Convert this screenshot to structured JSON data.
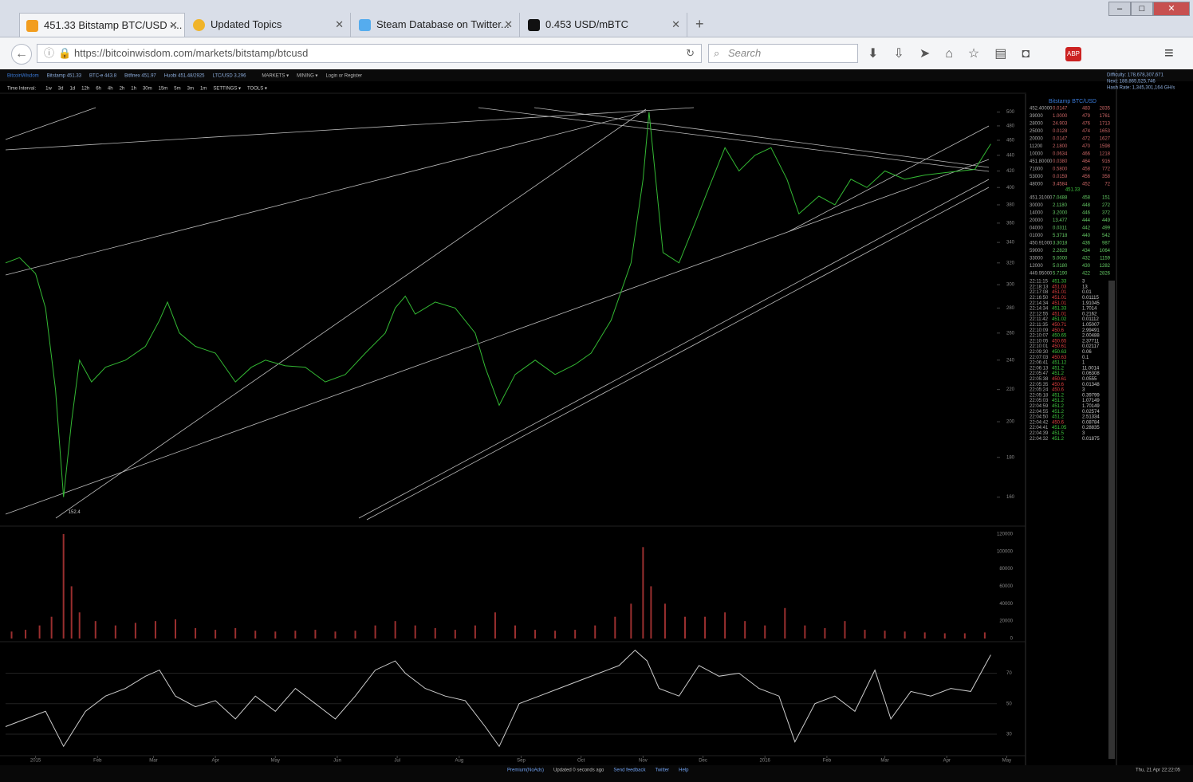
{
  "browser": {
    "tabs": [
      "451.33 Bitstamp BTC/USD -...",
      "Updated Topics",
      "Steam Database on Twitter...",
      "0.453 USD/mBTC"
    ],
    "url": "https://bitcoinwisdom.com/markets/bitstamp/btcusd",
    "search_placeholder": "Search"
  },
  "site": {
    "logo": "BitcoinWisdom",
    "tickers": [
      "Bitstamp 451.33",
      "BTC-e 443.8",
      "Bitfinex 451.97",
      "Huobi 451.48/2925",
      "LTC/USD 3.296"
    ],
    "menus": [
      "MARKETS ▾",
      "MINING ▾",
      "Login or Register"
    ],
    "interval_label": "Time Interval:",
    "intervals": [
      "1w",
      "3d",
      "1d",
      "12h",
      "6h",
      "4h",
      "2h",
      "1h",
      "30m",
      "15m",
      "5m",
      "3m",
      "1m",
      "SETTINGS ▾",
      "TOOLS ▾"
    ],
    "info": [
      "Difficulty: 178,678,307,671",
      "Next: 188,865,525,746",
      "Hash Rate: 1,345,301,164 GH/s"
    ],
    "footer": [
      "Premium(NoAds)",
      "Updated 0 seconds ago",
      "Send feedback",
      "Twitter",
      "Help"
    ],
    "clock": "Thu, 21 Apr 22:22:05"
  },
  "chart_data": {
    "type": "line",
    "title": "Bitstamp BTC/USD",
    "annotation": "152.4",
    "annotation_x": 14,
    "log_y": true,
    "xlim": [
      -15,
      495
    ],
    "xticks": [
      {
        "value": 0,
        "label": "2015"
      },
      {
        "value": 31,
        "label": "Feb"
      },
      {
        "value": 59,
        "label": "Mar"
      },
      {
        "value": 90,
        "label": "Apr"
      },
      {
        "value": 120,
        "label": "May"
      },
      {
        "value": 151,
        "label": "Jun"
      },
      {
        "value": 181,
        "label": "Jul"
      },
      {
        "value": 212,
        "label": "Aug"
      },
      {
        "value": 243,
        "label": "Sep"
      },
      {
        "value": 273,
        "label": "Oct"
      },
      {
        "value": 304,
        "label": "Nov"
      },
      {
        "value": 334,
        "label": "Dec"
      },
      {
        "value": 365,
        "label": "2016"
      },
      {
        "value": 396,
        "label": "Feb"
      },
      {
        "value": 425,
        "label": "Mar"
      },
      {
        "value": 456,
        "label": "Apr"
      },
      {
        "value": 486,
        "label": "May"
      }
    ],
    "ylim": [
      150,
      520
    ],
    "yticks": [
      160,
      180,
      200,
      220,
      240,
      260,
      280,
      300,
      320,
      340,
      360,
      380,
      400,
      420,
      440,
      460,
      480,
      500
    ],
    "series": [
      {
        "name": "Price",
        "color": "#33b833",
        "x": [
          -15,
          -8,
          0,
          5,
          10,
          14,
          18,
          22,
          28,
          35,
          45,
          55,
          62,
          66,
          72,
          80,
          90,
          100,
          108,
          115,
          125,
          135,
          145,
          155,
          165,
          175,
          180,
          185,
          190,
          200,
          210,
          220,
          225,
          232,
          240,
          250,
          260,
          270,
          278,
          288,
          298,
          304,
          307,
          314,
          322,
          330,
          337,
          345,
          352,
          360,
          368,
          376,
          382,
          392,
          400,
          408,
          416,
          425,
          435,
          445,
          455,
          470,
          478
        ],
        "values": [
          320,
          325,
          310,
          280,
          220,
          160,
          200,
          240,
          225,
          235,
          240,
          250,
          270,
          285,
          260,
          250,
          245,
          225,
          235,
          240,
          236,
          235,
          225,
          230,
          245,
          260,
          280,
          290,
          275,
          285,
          280,
          260,
          235,
          210,
          230,
          240,
          230,
          237,
          245,
          270,
          320,
          410,
          500,
          330,
          320,
          360,
          400,
          450,
          420,
          440,
          450,
          410,
          370,
          390,
          380,
          410,
          400,
          420,
          410,
          415,
          418,
          422,
          455
        ]
      }
    ],
    "volume": {
      "color": "#9a2f2f",
      "ylim": [
        0,
        130000
      ],
      "yticks": [
        0,
        20000,
        40000,
        60000,
        80000,
        100000,
        120000
      ],
      "x": [
        -12,
        -5,
        2,
        8,
        14,
        18,
        22,
        30,
        40,
        50,
        60,
        70,
        80,
        90,
        100,
        110,
        120,
        130,
        140,
        150,
        160,
        170,
        180,
        190,
        200,
        210,
        220,
        230,
        240,
        250,
        260,
        270,
        280,
        290,
        298,
        304,
        308,
        315,
        325,
        335,
        345,
        355,
        365,
        375,
        385,
        395,
        405,
        415,
        425,
        435,
        445,
        455,
        465,
        475
      ],
      "values": [
        8000,
        10000,
        15000,
        25000,
        120000,
        60000,
        30000,
        20000,
        15000,
        18000,
        20000,
        22000,
        12000,
        10000,
        12000,
        9000,
        8000,
        9000,
        10000,
        8000,
        9000,
        15000,
        20000,
        15000,
        12000,
        10000,
        15000,
        30000,
        15000,
        10000,
        9000,
        10000,
        15000,
        25000,
        40000,
        105000,
        60000,
        40000,
        25000,
        25000,
        30000,
        20000,
        15000,
        35000,
        15000,
        12000,
        20000,
        10000,
        9000,
        8000,
        7000,
        6000,
        6000,
        7000
      ]
    },
    "rsi": {
      "color": "#cccccc",
      "ylim": [
        18,
        88
      ],
      "yticks": [
        30,
        50,
        70
      ],
      "x": [
        -15,
        -5,
        5,
        14,
        25,
        35,
        45,
        55,
        62,
        70,
        80,
        90,
        100,
        110,
        120,
        130,
        140,
        150,
        160,
        170,
        180,
        185,
        195,
        205,
        215,
        225,
        232,
        242,
        252,
        262,
        272,
        282,
        292,
        300,
        306,
        312,
        322,
        332,
        342,
        352,
        362,
        372,
        380,
        390,
        400,
        410,
        420,
        428,
        438,
        448,
        458,
        468,
        478
      ],
      "values": [
        35,
        40,
        45,
        22,
        45,
        55,
        60,
        68,
        72,
        55,
        48,
        52,
        40,
        55,
        45,
        60,
        50,
        40,
        55,
        72,
        78,
        70,
        60,
        55,
        52,
        35,
        22,
        50,
        55,
        60,
        65,
        70,
        75,
        85,
        78,
        60,
        55,
        75,
        68,
        70,
        60,
        55,
        25,
        50,
        55,
        45,
        72,
        40,
        58,
        55,
        60,
        58,
        82
      ]
    }
  },
  "order_book": {
    "asks": [
      [
        "452.40000",
        "0.0147",
        "483",
        "2835"
      ],
      [
        "39000",
        "1.0000",
        "479",
        "1761"
      ],
      [
        "28000",
        "24.903",
        "476",
        "1713"
      ],
      [
        "25000",
        "0.0128",
        "474",
        "1653"
      ],
      [
        "20000",
        "0.0147",
        "472",
        "1627"
      ],
      [
        "11200",
        "2.1800",
        "470",
        "1598"
      ],
      [
        "10000",
        "0.0634",
        "466",
        "1218"
      ],
      [
        "451.80000",
        "0.0380",
        "464",
        "916"
      ],
      [
        "71000",
        "0.5800",
        "458",
        "772"
      ],
      [
        "53000",
        "0.0159",
        "456",
        "358"
      ],
      [
        "48000",
        "3.4584",
        "452",
        "72"
      ]
    ],
    "mid": "451.33",
    "bids": [
      [
        "451.31000",
        "7.0488",
        "458",
        "151"
      ],
      [
        "30000",
        "2.1180",
        "448",
        "272"
      ],
      [
        "14000",
        "3.2000",
        "446",
        "372"
      ],
      [
        "20000",
        "13.477",
        "444",
        "449"
      ],
      [
        "04000",
        "0.0311",
        "442",
        "499"
      ],
      [
        "01000",
        "5.3718",
        "440",
        "542"
      ],
      [
        "450.91000",
        "3.3018",
        "436",
        "987"
      ],
      [
        "59000",
        "2.2828",
        "434",
        "1064"
      ],
      [
        "33000",
        "5.0000",
        "432",
        "1159"
      ],
      [
        "12000",
        "5.0180",
        "430",
        "1282"
      ],
      [
        "449.95000",
        "5.7190",
        "422",
        "2826"
      ]
    ]
  },
  "trades": [
    {
      "time": "22:11:15",
      "price": "451.33",
      "amount": "3",
      "color": "#3fc93f"
    },
    {
      "time": "22:18:13",
      "price": "451.03",
      "amount": "13",
      "color": "#e04040"
    },
    {
      "time": "22:17:08",
      "price": "451.01",
      "amount": "0.01",
      "color": "#e04040"
    },
    {
      "time": "22:16:50",
      "price": "451.01",
      "amount": "0.01115",
      "color": "#e04040"
    },
    {
      "time": "22:14:34",
      "price": "451.01",
      "amount": "1.91045",
      "color": "#e04040"
    },
    {
      "time": "22:14:34",
      "price": "451.33",
      "amount": "1.7014",
      "color": "#3fc93f"
    },
    {
      "time": "22:12:55",
      "price": "451.01",
      "amount": "0.2162",
      "color": "#e04040"
    },
    {
      "time": "22:11:42",
      "price": "451.02",
      "amount": "0.01112",
      "color": "#3fc93f"
    },
    {
      "time": "22:11:35",
      "price": "450.71",
      "amount": "1.05007",
      "color": "#e04040"
    },
    {
      "time": "22:10:09",
      "price": "450.6",
      "amount": "2.99491",
      "color": "#e04040"
    },
    {
      "time": "22:10:07",
      "price": "450.65",
      "amount": "2.00488",
      "color": "#3fc93f"
    },
    {
      "time": "22:10:05",
      "price": "450.65",
      "amount": "2.37711",
      "color": "#e04040"
    },
    {
      "time": "22:10:01",
      "price": "450.61",
      "amount": "0.02117",
      "color": "#e04040"
    },
    {
      "time": "22:09:30",
      "price": "450.63",
      "amount": "0.06",
      "color": "#3fc93f"
    },
    {
      "time": "22:07:03",
      "price": "450.63",
      "amount": "0.1",
      "color": "#e04040"
    },
    {
      "time": "22:06:41",
      "price": "451.12",
      "amount": "1",
      "color": "#3fc93f"
    },
    {
      "time": "22:06:13",
      "price": "451.2",
      "amount": "11.0014",
      "color": "#3fc93f"
    },
    {
      "time": "22:05:47",
      "price": "451.2",
      "amount": "0.06308",
      "color": "#3fc93f"
    },
    {
      "time": "22:05:38",
      "price": "450.61",
      "amount": "0.0555",
      "color": "#e04040"
    },
    {
      "time": "22:05:35",
      "price": "450.6",
      "amount": "0.01348",
      "color": "#e04040"
    },
    {
      "time": "22:05:24",
      "price": "450.6",
      "amount": "3",
      "color": "#e04040"
    },
    {
      "time": "22:05:18",
      "price": "451.2",
      "amount": "0.39799",
      "color": "#3fc93f"
    },
    {
      "time": "22:05:03",
      "price": "451.2",
      "amount": "1.07149",
      "color": "#3fc93f"
    },
    {
      "time": "22:04:59",
      "price": "451.2",
      "amount": "1.70149",
      "color": "#3fc93f"
    },
    {
      "time": "22:04:55",
      "price": "451.2",
      "amount": "0.02574",
      "color": "#3fc93f"
    },
    {
      "time": "22:04:50",
      "price": "451.2",
      "amount": "2.51334",
      "color": "#3fc93f"
    },
    {
      "time": "22:04:42",
      "price": "450.6",
      "amount": "0.08784",
      "color": "#e04040"
    },
    {
      "time": "22:04:41",
      "price": "451.05",
      "amount": "0.28835",
      "color": "#3fc93f"
    },
    {
      "time": "22:04:39",
      "price": "451.5",
      "amount": "3",
      "color": "#3fc93f"
    },
    {
      "time": "22:04:32",
      "price": "451.2",
      "amount": "0.01875",
      "color": "#3fc93f"
    }
  ]
}
